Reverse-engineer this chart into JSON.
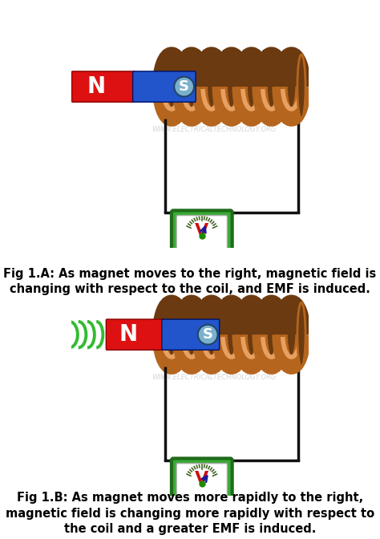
{
  "fig_width": 4.74,
  "fig_height": 6.72,
  "dpi": 100,
  "bg_color": "#ffffff",
  "caption_a": "Fig 1.A: As magnet moves to the right, magnetic field is\nchanging with respect to the coil, and EMF is induced.",
  "caption_b": "Fig 1.B: As magnet moves more rapidly to the right,\nmagnetic field is changing more rapidly with respect to\nthe coil and a greater EMF is induced.",
  "watermark": "WWW.ELECTRICALTECHNOLOGY.ORG",
  "magnet_red": "#dd1111",
  "magnet_blue": "#2255cc",
  "coil_color": "#b5651d",
  "coil_dark": "#6b3a10",
  "coil_highlight": "#e8a060",
  "green_color": "#3aaa35",
  "green_dark": "#1e6b1a",
  "wire_color": "#111111",
  "s_circle_color": "#7ab0cc",
  "watermark_color": "#cccccc",
  "motion_wave_color": "#33bb33",
  "caption_fontsize": 10.5
}
